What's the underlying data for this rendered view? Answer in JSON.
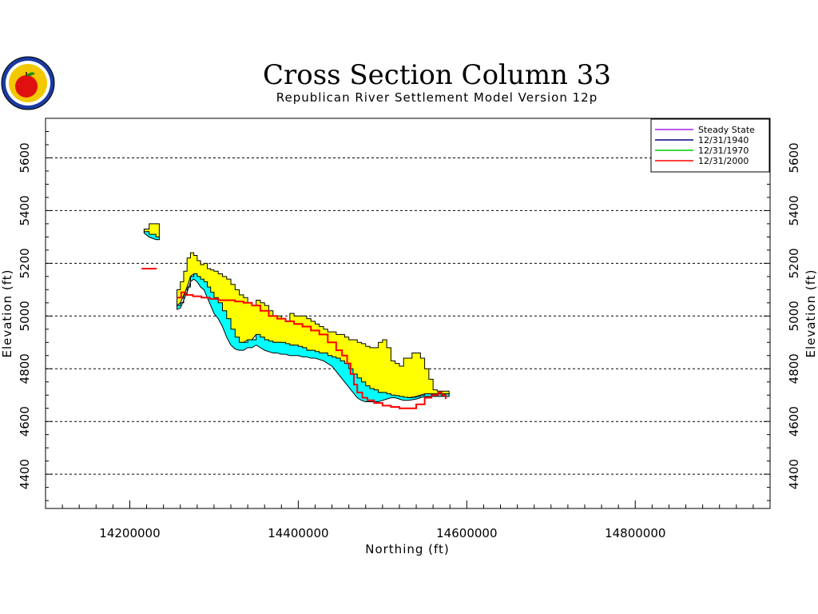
{
  "chart_data": {
    "type": "area",
    "title": "Cross Section Column 33",
    "subtitle": "Republican River Settlement Model Version 12p",
    "xlabel": "Northing (ft)",
    "ylabel": "Elevation (ft)",
    "xlim": [
      14100000,
      14960000
    ],
    "ylim": [
      4270,
      5750
    ],
    "x_ticks": [
      14200000,
      14400000,
      14600000,
      14800000
    ],
    "x_tick_labels": [
      "14200000",
      "14400000",
      "14600000",
      "14800000"
    ],
    "y_ticks": [
      4400,
      4600,
      4800,
      5000,
      5200,
      5400,
      5600
    ],
    "y_tick_labels": [
      "4400",
      "4600",
      "4800",
      "5000",
      "5200",
      "5400",
      "5600"
    ],
    "grid": "horizontal dashed at major y ticks",
    "legend_position": "top-right",
    "colors": {
      "steady_state": "#a020f0",
      "y1940": "#000080",
      "y1970": "#00cc00",
      "y2000": "#ff0000",
      "layer_top": "#ffff00",
      "layer_mid": "#00ffff"
    },
    "layers": [
      {
        "fill": "#ffff00",
        "segments": [
          {
            "x": [
              14217000,
              14223000,
              14231000
            ],
            "top": [
              5330,
              5350,
              5350
            ],
            "bottom": [
              5315,
              5300,
              5290
            ]
          },
          {
            "x": [
              14256000,
              14260000,
              14264000,
              14268000,
              14272000,
              14276000,
              14280000,
              14284000,
              14288000,
              14292000,
              14296000,
              14300000,
              14305000,
              14310000,
              14315000,
              14320000,
              14325000,
              14330000,
              14335000,
              14340000,
              14345000,
              14350000,
              14355000,
              14360000,
              14365000,
              14370000,
              14375000,
              14380000,
              14385000,
              14390000,
              14395000,
              14400000,
              14405000,
              14410000,
              14415000,
              14420000,
              14425000,
              14430000,
              14435000,
              14440000,
              14445000,
              14450000,
              14455000,
              14460000,
              14465000,
              14470000,
              14475000,
              14480000,
              14485000,
              14490000,
              14495000,
              14500000,
              14505000,
              14510000,
              14515000,
              14520000,
              14525000,
              14530000,
              14535000,
              14540000,
              14545000,
              14550000,
              14555000,
              14560000,
              14565000,
              14570000,
              14575000
            ],
            "top": [
              5100,
              5130,
              5170,
              5220,
              5240,
              5230,
              5210,
              5195,
              5200,
              5180,
              5175,
              5170,
              5160,
              5150,
              5140,
              5120,
              5100,
              5080,
              5070,
              5050,
              5040,
              5060,
              5050,
              5040,
              5020,
              5000,
              5000,
              4990,
              4980,
              5010,
              5000,
              5000,
              5000,
              4990,
              4980,
              4970,
              4960,
              4950,
              4940,
              4940,
              4930,
              4930,
              4920,
              4910,
              4910,
              4900,
              4895,
              4885,
              4880,
              4880,
              4900,
              4910,
              4880,
              4830,
              4820,
              4810,
              4840,
              4840,
              4860,
              4860,
              4840,
              4800,
              4760,
              4720,
              4715,
              4715,
              4715
            ],
            "bottom": [
              5040,
              5050,
              5080,
              5110,
              5150,
              5160,
              5150,
              5140,
              5130,
              5110,
              5090,
              5070,
              5050,
              5020,
              4990,
              4950,
              4920,
              4900,
              4900,
              4910,
              4910,
              4930,
              4920,
              4910,
              4905,
              4900,
              4900,
              4900,
              4895,
              4890,
              4890,
              4885,
              4880,
              4870,
              4870,
              4865,
              4860,
              4860,
              4850,
              4845,
              4840,
              4830,
              4820,
              4800,
              4780,
              4765,
              4750,
              4735,
              4725,
              4720,
              4710,
              4710,
              4705,
              4700,
              4698,
              4695,
              4692,
              4690,
              4692,
              4695,
              4700,
              4705,
              4705,
              4705,
              4705,
              4705,
              4705
            ]
          }
        ]
      },
      {
        "fill": "#00ffff",
        "segments": [
          {
            "x": [
              14217000,
              14223000,
              14231000
            ],
            "top": [
              5320,
              5310,
              5300
            ],
            "bottom": [
              5315,
              5300,
              5290
            ]
          },
          {
            "x": [
              14256000,
              14260000,
              14264000,
              14268000,
              14272000,
              14276000,
              14280000,
              14284000,
              14288000,
              14292000,
              14296000,
              14300000,
              14305000,
              14310000,
              14315000,
              14320000,
              14325000,
              14330000,
              14335000,
              14340000,
              14345000,
              14350000,
              14355000,
              14360000,
              14365000,
              14370000,
              14375000,
              14380000,
              14385000,
              14390000,
              14395000,
              14400000,
              14405000,
              14410000,
              14415000,
              14420000,
              14425000,
              14430000,
              14435000,
              14440000,
              14445000,
              14450000,
              14455000,
              14460000,
              14465000,
              14470000,
              14475000,
              14480000,
              14485000,
              14490000,
              14495000,
              14500000,
              14505000,
              14510000,
              14515000,
              14520000,
              14525000,
              14530000,
              14535000,
              14540000,
              14545000,
              14550000,
              14555000,
              14560000,
              14565000,
              14570000,
              14575000
            ],
            "top": [
              5040,
              5050,
              5080,
              5110,
              5150,
              5160,
              5150,
              5140,
              5130,
              5110,
              5090,
              5070,
              5050,
              5020,
              4990,
              4950,
              4920,
              4900,
              4900,
              4910,
              4910,
              4930,
              4920,
              4910,
              4905,
              4900,
              4900,
              4900,
              4895,
              4890,
              4890,
              4885,
              4880,
              4870,
              4870,
              4865,
              4860,
              4860,
              4850,
              4845,
              4840,
              4830,
              4820,
              4800,
              4780,
              4765,
              4750,
              4735,
              4725,
              4720,
              4710,
              4710,
              4705,
              4700,
              4698,
              4695,
              4692,
              4690,
              4692,
              4695,
              4700,
              4705,
              4705,
              4705,
              4705,
              4705,
              4705
            ],
            "bottom": [
              5025,
              5030,
              5060,
              5090,
              5130,
              5140,
              5130,
              5110,
              5100,
              5070,
              5040,
              5010,
              4990,
              4960,
              4920,
              4890,
              4875,
              4870,
              4870,
              4880,
              4880,
              4890,
              4880,
              4870,
              4865,
              4860,
              4860,
              4855,
              4855,
              4850,
              4850,
              4850,
              4845,
              4845,
              4840,
              4840,
              4835,
              4830,
              4820,
              4810,
              4790,
              4770,
              4750,
              4730,
              4710,
              4690,
              4680,
              4675,
              4675,
              4675,
              4675,
              4680,
              4685,
              4690,
              4690,
              4685,
              4680,
              4680,
              4682,
              4685,
              4690,
              4695,
              4695,
              4695,
              4695,
              4695,
              4695
            ]
          }
        ]
      }
    ],
    "series": [
      {
        "name": "Steady State",
        "color": "#a020f0",
        "segments": []
      },
      {
        "name": "12/31/1940",
        "color": "#000080",
        "segments": []
      },
      {
        "name": "12/31/1970",
        "color": "#00cc00",
        "segments": []
      },
      {
        "name": "12/31/2000",
        "color": "#ff0000",
        "segments": [
          {
            "x": [
              14214000,
              14232000
            ],
            "y": [
              5180,
              5180
            ]
          },
          {
            "x": [
              14256000,
              14261000,
              14266000,
              14275000,
              14285000,
              14295000,
              14305000,
              14315000,
              14325000,
              14335000,
              14345000,
              14355000,
              14365000,
              14375000,
              14385000,
              14395000,
              14405000,
              14415000,
              14425000,
              14435000,
              14445000,
              14452000,
              14458000,
              14462000,
              14466000,
              14470000,
              14476000,
              14482000,
              14490000,
              14500000,
              14510000,
              14520000,
              14530000,
              14540000,
              14550000,
              14558000,
              14566000,
              14570000,
              14575000
            ],
            "y": [
              5070,
              5090,
              5080,
              5075,
              5070,
              5065,
              5060,
              5060,
              5055,
              5050,
              5040,
              5020,
              5000,
              4990,
              4980,
              4970,
              4960,
              4945,
              4930,
              4900,
              4870,
              4850,
              4820,
              4780,
              4740,
              4710,
              4690,
              4680,
              4670,
              4660,
              4655,
              4650,
              4650,
              4665,
              4690,
              4700,
              4710,
              4700,
              4685
            ]
          }
        ]
      }
    ]
  }
}
